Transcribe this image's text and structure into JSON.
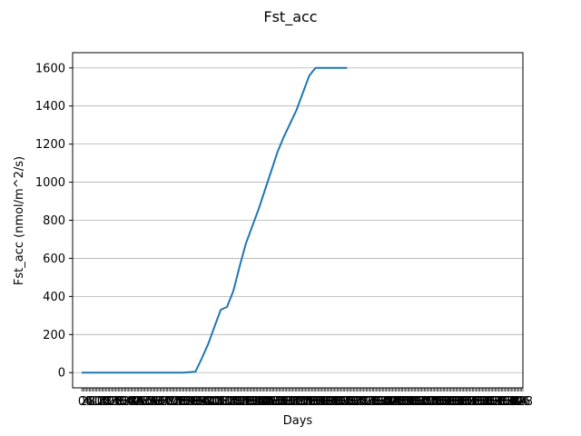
{
  "chart_data": {
    "type": "line",
    "title": "Fst_acc",
    "xlabel": "Days",
    "ylabel": "Fst_acc (nmol/m^2/s)",
    "ylim": [
      -80,
      1680
    ],
    "yticks": [
      0,
      200,
      400,
      600,
      800,
      1000,
      1200,
      1400,
      1600
    ],
    "grid": "horizontal",
    "line_color": "#1f77b4",
    "x_tick_count": 350,
    "series": [
      {
        "x": [
          0,
          80,
          90,
          95,
          100,
          105,
          110,
          115,
          120,
          125,
          130,
          135,
          140,
          145,
          150,
          155,
          160,
          165,
          170,
          175,
          180,
          185,
          190,
          195,
          200,
          205,
          210
        ],
        "y": [
          0,
          0,
          5,
          75,
          150,
          240,
          330,
          345,
          430,
          560,
          680,
          770,
          860,
          960,
          1060,
          1160,
          1240,
          1310,
          1380,
          1470,
          1560,
          1600,
          1600,
          1600,
          1600,
          1600,
          1600
        ]
      }
    ]
  }
}
